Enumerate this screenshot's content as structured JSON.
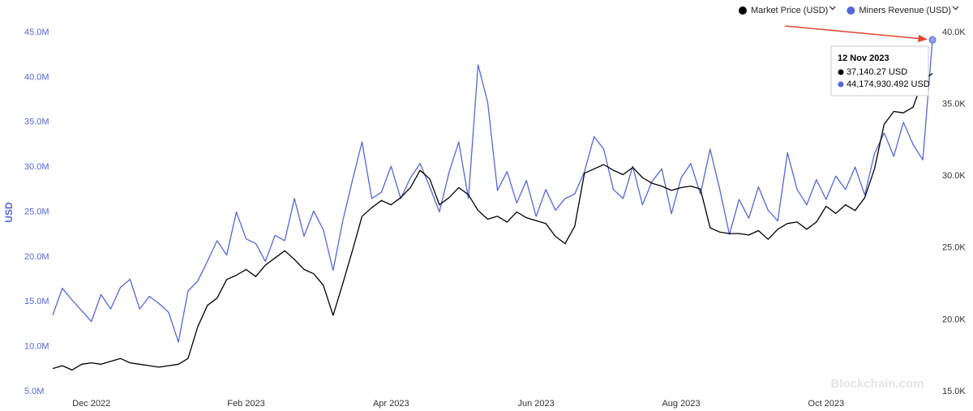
{
  "chart_data": {
    "type": "line",
    "y_label": "USD",
    "legend": "top-right",
    "grid": false,
    "watermark": "Blockchain.com",
    "categories": [
      null,
      null,
      null,
      null,
      "Dec 2022",
      null,
      null,
      null,
      null,
      null,
      null,
      null,
      null,
      null,
      null,
      null,
      null,
      null,
      null,
      null,
      "Feb 2023",
      null,
      null,
      null,
      null,
      null,
      null,
      null,
      null,
      null,
      null,
      null,
      null,
      null,
      null,
      "Apr 2023",
      null,
      null,
      null,
      null,
      null,
      null,
      null,
      null,
      null,
      null,
      null,
      null,
      null,
      null,
      "Jun 2023",
      null,
      null,
      null,
      null,
      null,
      null,
      null,
      null,
      null,
      null,
      null,
      null,
      null,
      null,
      "Aug 2023",
      null,
      null,
      null,
      null,
      null,
      null,
      null,
      null,
      null,
      null,
      null,
      null,
      null,
      null,
      "Oct 2023",
      null,
      null,
      null,
      null,
      null,
      null,
      null,
      null,
      null,
      null,
      null
    ],
    "series": [
      {
        "name": "Market Price (USD)",
        "color": "#000000",
        "axis": "y2",
        "values": [
          16600,
          16800,
          16500,
          16900,
          17000,
          16900,
          17100,
          17300,
          17000,
          16900,
          16800,
          16700,
          16800,
          16900,
          17300,
          19500,
          21000,
          21500,
          22800,
          23100,
          23500,
          23000,
          23800,
          24300,
          24800,
          24200,
          23500,
          23200,
          22400,
          20300,
          22500,
          24800,
          27200,
          27800,
          28300,
          28000,
          28500,
          29200,
          30400,
          29800,
          28000,
          28500,
          29200,
          28700,
          27600,
          27000,
          27200,
          26800,
          27500,
          27100,
          26900,
          26700,
          25800,
          25300,
          26500,
          30200,
          30500,
          30800,
          30400,
          30100,
          30600,
          29900,
          29500,
          29300,
          29000,
          29200,
          29300,
          29100,
          26400,
          26100,
          26000,
          26000,
          25900,
          26200,
          25600,
          26300,
          26700,
          26800,
          26300,
          26800,
          27900,
          27400,
          28000,
          27600,
          28500,
          30500,
          33600,
          34500,
          34400,
          34800,
          36700,
          37140.27
        ]
      },
      {
        "name": "Miners Revenue (USD)",
        "color": "#5468d4",
        "values": [
          13500000,
          16500000,
          15200000,
          14000000,
          12800000,
          15800000,
          14200000,
          16600000,
          17500000,
          14200000,
          15600000,
          14800000,
          13800000,
          10500000,
          16200000,
          17300000,
          19500000,
          21800000,
          20200000,
          25000000,
          22000000,
          21500000,
          19500000,
          22400000,
          21800000,
          26500000,
          22300000,
          25100000,
          23000000,
          18500000,
          24000000,
          28500000,
          32800000,
          26500000,
          27200000,
          30100000,
          26500000,
          28800000,
          30400000,
          27800000,
          25000000,
          29400000,
          32800000,
          26500000,
          41400000,
          37200000,
          27400000,
          29500000,
          26000000,
          28500000,
          24500000,
          27500000,
          25200000,
          26500000,
          27000000,
          29500000,
          33400000,
          32000000,
          27500000,
          26500000,
          30100000,
          25800000,
          28400000,
          29800000,
          24800000,
          28800000,
          30400000,
          27000000,
          32000000,
          27500000,
          22500000,
          26400000,
          24300000,
          27800000,
          25200000,
          24000000,
          31600000,
          27500000,
          25800000,
          28600000,
          26400000,
          29000000,
          27500000,
          30000000,
          26900000,
          31500000,
          33800000,
          31200000,
          35000000,
          32500000,
          30800000,
          44174930.492
        ]
      }
    ],
    "ylim": [
      5000000,
      45000000
    ],
    "yticks": [
      {
        "value": 5000000,
        "label": "5.0M"
      },
      {
        "value": 10000000,
        "label": "10.0M"
      },
      {
        "value": 15000000,
        "label": "15.0M"
      },
      {
        "value": 20000000,
        "label": "20.0M"
      },
      {
        "value": 25000000,
        "label": "25.0M"
      },
      {
        "value": 30000000,
        "label": "30.0M"
      },
      {
        "value": 35000000,
        "label": "35.0M"
      },
      {
        "value": 40000000,
        "label": "40.0M"
      },
      {
        "value": 45000000,
        "label": "45.0M"
      }
    ],
    "y2lim": [
      15000,
      40000
    ],
    "y2ticks": [
      {
        "value": 15000,
        "label": "15.0K"
      },
      {
        "value": 20000,
        "label": "20.0K"
      },
      {
        "value": 25000,
        "label": "25.0K"
      },
      {
        "value": 30000,
        "label": "30.0K"
      },
      {
        "value": 35000,
        "label": "35.0K"
      },
      {
        "value": 40000,
        "label": "40.0K"
      }
    ],
    "tooltip": {
      "date": "12 Nov 2023",
      "rows": [
        "37,140.27 USD",
        "44,174,930.492 USD"
      ]
    }
  }
}
